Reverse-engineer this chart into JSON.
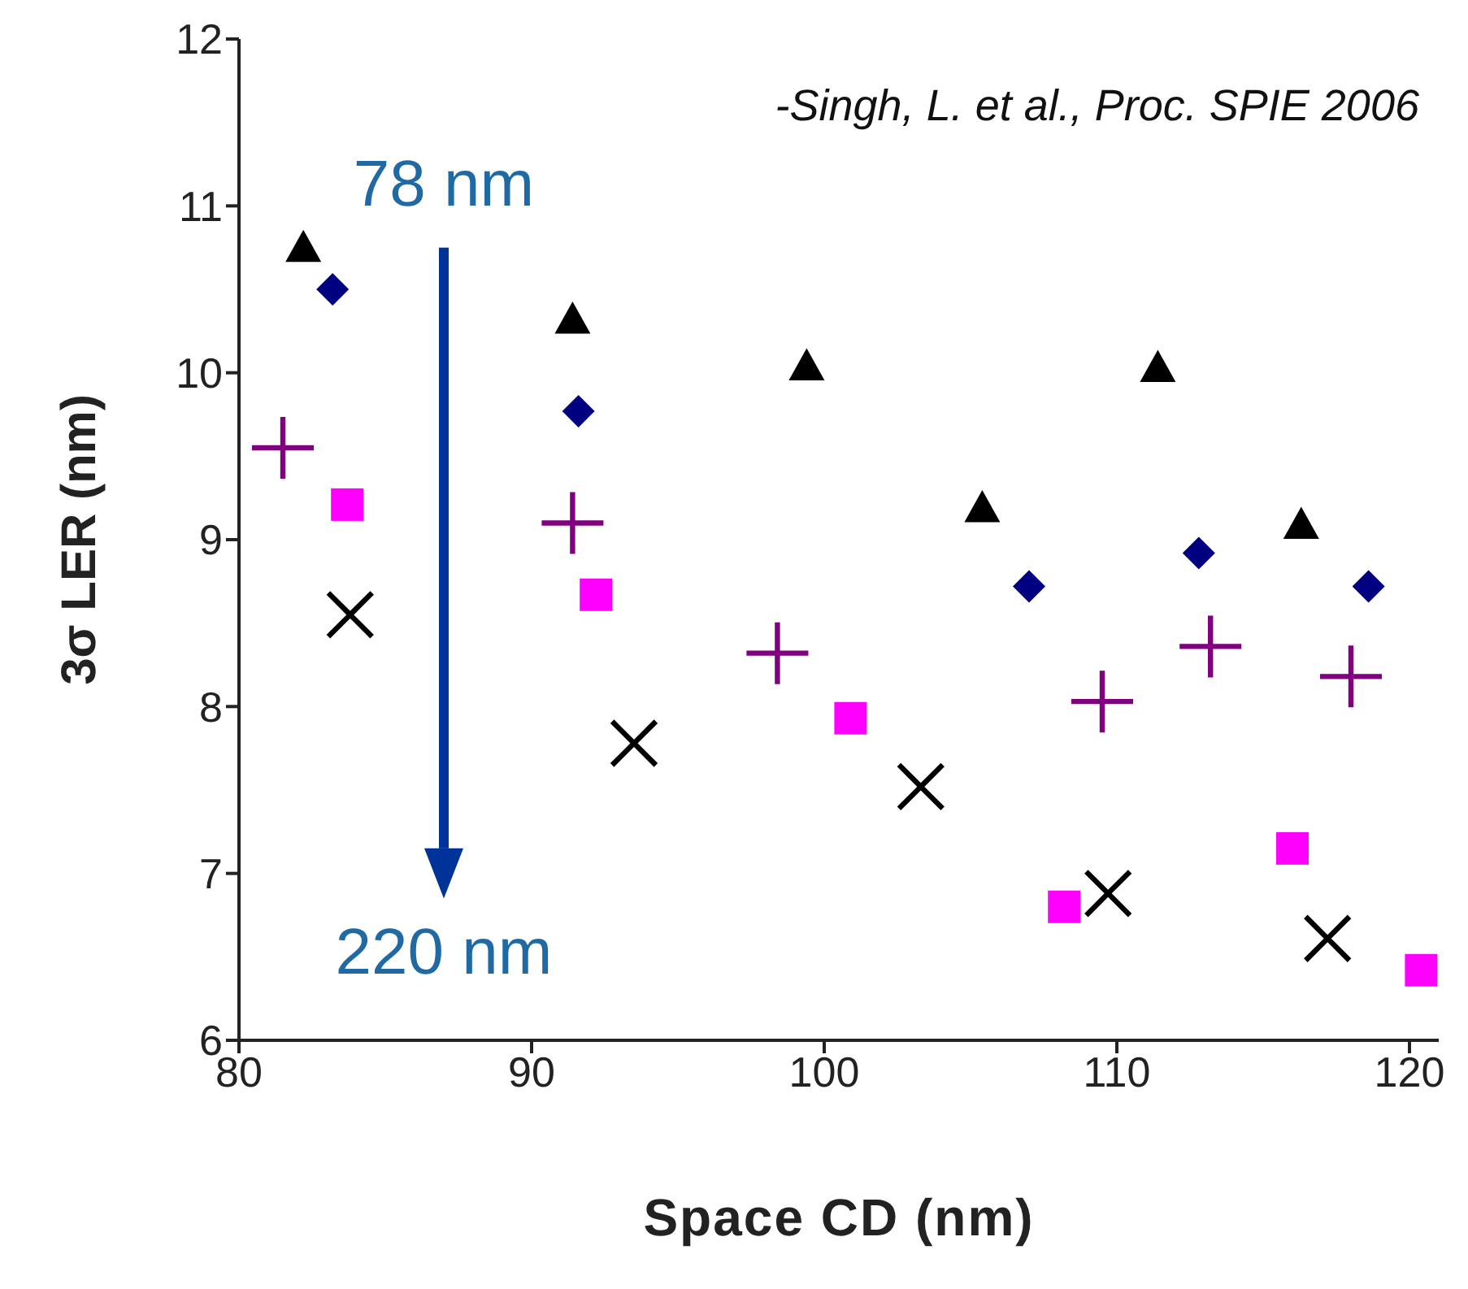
{
  "chart_data": {
    "type": "scatter",
    "xlabel": "Space CD (nm)",
    "ylabel": "3σ LER (nm)",
    "annotations": [
      "-Singh, L. et al., Proc. SPIE 2006",
      "78 nm",
      "220 nm"
    ],
    "xlim": [
      80,
      121
    ],
    "xticks": [
      80,
      90,
      100,
      110,
      120
    ],
    "ylim": [
      6,
      12
    ],
    "yticks": [
      6,
      7,
      8,
      9,
      10,
      11,
      12
    ],
    "grid": false,
    "legend": false,
    "series": [
      {
        "color": "#000000",
        "marker": "triangle",
        "x": [
          82.2,
          91.4,
          99.4,
          105.4,
          111.4,
          116.3
        ],
        "values": [
          10.75,
          10.32,
          10.04,
          9.19,
          10.03,
          9.09
        ]
      },
      {
        "color": "#000080",
        "marker": "diamond",
        "x": [
          83.2,
          91.6,
          107.0,
          112.8,
          118.6
        ],
        "values": [
          10.5,
          9.77,
          8.72,
          8.92,
          8.72
        ]
      },
      {
        "color": "#800080",
        "marker": "cross",
        "x": [
          81.5,
          91.4,
          98.4,
          109.5,
          113.2,
          118.0
        ],
        "values": [
          9.55,
          9.1,
          8.32,
          8.03,
          8.36,
          8.18
        ]
      },
      {
        "color": "#ff00ff",
        "marker": "square",
        "x": [
          83.7,
          92.2,
          100.9,
          108.2,
          116.0,
          120.4
        ],
        "values": [
          9.21,
          8.67,
          7.93,
          6.8,
          7.15,
          6.42
        ]
      },
      {
        "color": "#000000",
        "marker": "cross",
        "x": [
          83.8,
          93.5,
          103.3,
          109.7,
          117.2
        ],
        "values": [
          8.55,
          7.78,
          7.52,
          6.88,
          6.61
        ]
      }
    ]
  }
}
